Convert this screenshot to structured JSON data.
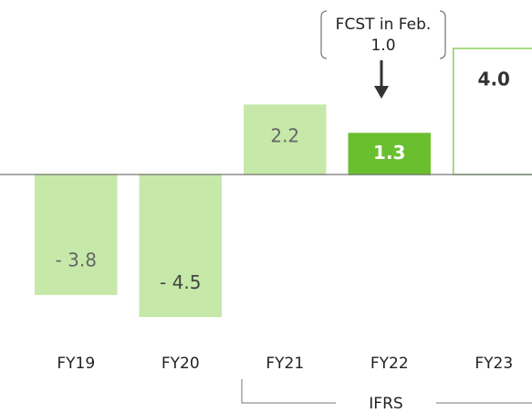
{
  "chart_data": {
    "type": "bar",
    "categories": [
      "FY19",
      "FY20",
      "FY21",
      "FY22",
      "FY23"
    ],
    "values": [
      -3.8,
      -4.5,
      2.2,
      1.3,
      4.0
    ],
    "value_labels": [
      "- 3.8",
      "- 4.5",
      "2.2",
      "1.3",
      "4.0"
    ],
    "colors": [
      "#c6e9a9",
      "#c6e9a9",
      "#c6e9a9",
      "#6abf2e",
      "#ffffff"
    ],
    "edgecolors": [
      "#c6e9a9",
      "#c6e9a9",
      "#c6e9a9",
      "#6abf2e",
      "#8ccf5a"
    ],
    "label_colors": [
      "#666666",
      "#444444",
      "#666666",
      "#ffffff",
      "#333333"
    ],
    "annotation": {
      "text": "FCST in Feb.",
      "value_label": "1.0"
    },
    "group_label": "IFRS"
  }
}
